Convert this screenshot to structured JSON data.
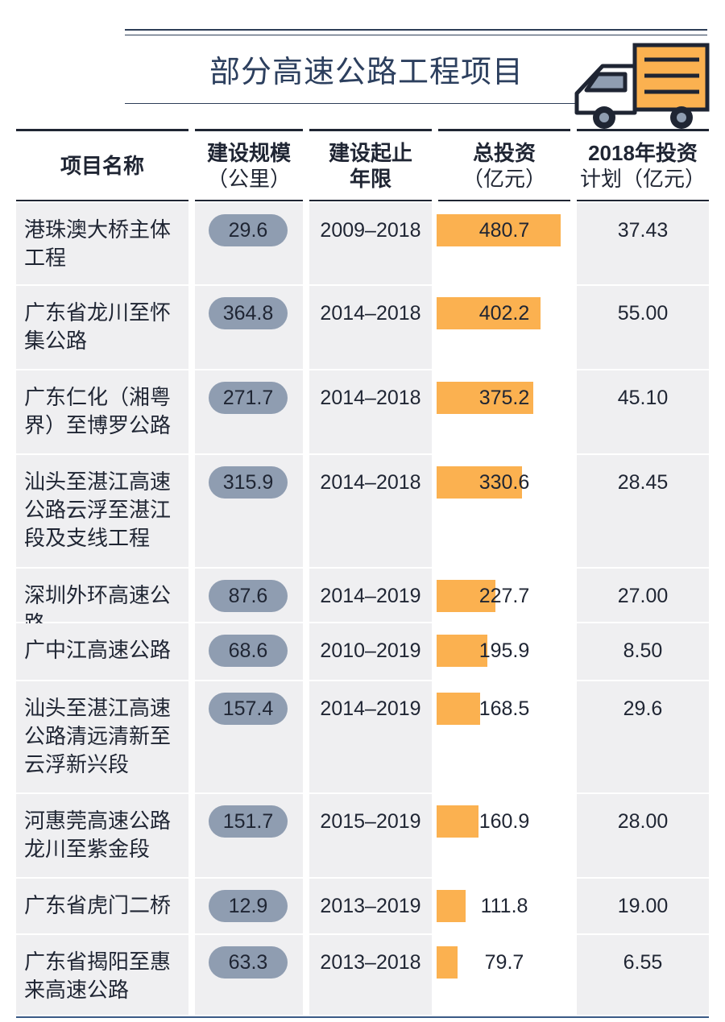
{
  "title": "部分高速公路工程项目",
  "headers": {
    "name": "项目名称",
    "scale_1": "建设规模",
    "scale_2": "（公里）",
    "years_1": "建设起止",
    "years_2": "年限",
    "invest_1": "总投资",
    "invest_2": "（亿元）",
    "plan_1": "2018年投资",
    "plan_2": "计划（亿元）"
  },
  "colors": {
    "bar": "#fbb150",
    "pill": "#8f9db1",
    "title": "#2c3f5e",
    "cell": "#efeff1"
  },
  "chart_data": {
    "type": "table",
    "title": "部分高速公路工程项目",
    "columns": [
      "项目名称",
      "建设规模（公里）",
      "建设起止年限",
      "总投资（亿元）",
      "2018年投资计划（亿元）"
    ],
    "rows": [
      {
        "name_lines": [
          "港珠澳大桥主体",
          "工程"
        ],
        "scale": "29.6",
        "years": "2009–2018",
        "invest": 480.7,
        "invest_label": "480.7",
        "plan": "37.43"
      },
      {
        "name_lines": [
          "广东省龙川至怀",
          "集公路"
        ],
        "scale": "364.8",
        "years": "2014–2018",
        "invest": 402.2,
        "invest_label": "402.2",
        "plan": "55.00"
      },
      {
        "name_lines": [
          "广东仁化（湘粤",
          "界）至博罗公路"
        ],
        "scale": "271.7",
        "years": "2014–2018",
        "invest": 375.2,
        "invest_label": "375.2",
        "plan": "45.10"
      },
      {
        "name_lines": [
          "汕头至湛江高速",
          "公路云浮至湛江",
          "段及支线工程"
        ],
        "scale": "315.9",
        "years": "2014–2018",
        "invest": 330.6,
        "invest_label": "330.6",
        "plan": "28.45"
      },
      {
        "name_lines": [
          "深圳外环高速公路"
        ],
        "scale": "87.6",
        "years": "2014–2019",
        "invest": 227.7,
        "invest_label": "227.7",
        "plan": "27.00"
      },
      {
        "name_lines": [
          "广中江高速公路"
        ],
        "scale": "68.6",
        "years": "2010–2019",
        "invest": 195.9,
        "invest_label": "195.9",
        "plan": "8.50"
      },
      {
        "name_lines": [
          "汕头至湛江高速",
          "公路清远清新至",
          "云浮新兴段"
        ],
        "scale": "157.4",
        "years": "2014–2019",
        "invest": 168.5,
        "invest_label": "168.5",
        "plan": "29.6"
      },
      {
        "name_lines": [
          "河惠莞高速公路",
          "龙川至紫金段"
        ],
        "scale": "151.7",
        "years": "2015–2019",
        "invest": 160.9,
        "invest_label": "160.9",
        "plan": "28.00"
      },
      {
        "name_lines": [
          "广东省虎门二桥"
        ],
        "scale": "12.9",
        "years": "2013–2019",
        "invest": 111.8,
        "invest_label": "111.8",
        "plan": "19.00"
      },
      {
        "name_lines": [
          "广东省揭阳至惠",
          "来高速公路"
        ],
        "scale": "63.3",
        "years": "2013–2018",
        "invest": 79.7,
        "invest_label": "79.7",
        "plan": "6.55"
      }
    ]
  }
}
